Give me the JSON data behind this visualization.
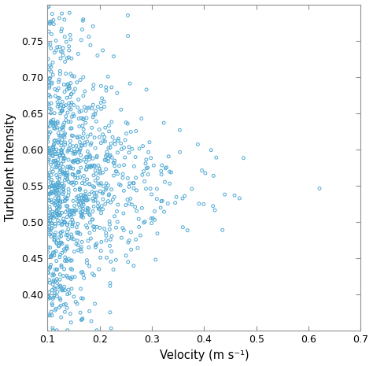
{
  "title": "",
  "xlabel": "Velocity (m s⁻¹)",
  "ylabel": "Turbulent Intensity",
  "xlim": [
    0.1,
    0.7
  ],
  "ylim": [
    0.35,
    0.8
  ],
  "xticks": [
    0.1,
    0.2,
    0.3,
    0.4,
    0.5,
    0.6,
    0.7
  ],
  "yticks": [
    0.4,
    0.45,
    0.5,
    0.55,
    0.6,
    0.65,
    0.7,
    0.75
  ],
  "marker_color": "#4FA8D4",
  "marker_size": 4.5,
  "marker_linewidth": 0.7,
  "seed": 12345,
  "n_points": 900,
  "background_color": "#ffffff",
  "axis_color": "#909090",
  "xlabel_fontsize": 10.5,
  "ylabel_fontsize": 10.5,
  "tick_fontsize": 9
}
